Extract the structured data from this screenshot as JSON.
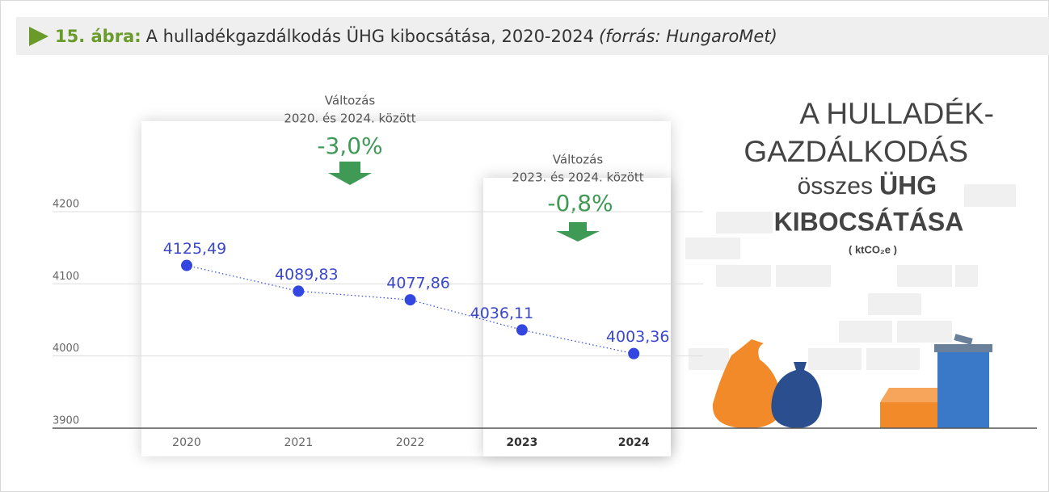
{
  "header": {
    "label": "15. ábra:",
    "title": "A hulladékgazdálkodás ÜHG kibocsátása, 2020-2024",
    "source": "(forrás: HungaroMet)"
  },
  "chart_data": {
    "type": "line",
    "categories": [
      "2020",
      "2021",
      "2022",
      "2023",
      "2024"
    ],
    "values": [
      4125.49,
      4089.83,
      4077.86,
      4036.11,
      4003.36
    ],
    "value_labels": [
      "4125,49",
      "4089,83",
      "4077,86",
      "4036,11",
      "4003,36"
    ],
    "color": "#3347e0",
    "ylim": [
      3900,
      4200
    ],
    "yticks": [
      3900,
      4000,
      4100,
      4200
    ],
    "grid": true,
    "annotations": [
      {
        "lines": [
          "Változás",
          "2020. és 2024. között"
        ],
        "change": "-3,0%"
      },
      {
        "lines": [
          "Változás",
          "2023. és 2024. között"
        ],
        "change": "-0,8%"
      }
    ],
    "side_title": {
      "line1": "A HULLADÉK-",
      "line2": "GAZDÁLKODÁS",
      "line3a": "összes",
      "line3b": "ÜHG",
      "line4": "KIBOCSÁTÁSA",
      "unit": "( ktCO₂e )"
    }
  }
}
